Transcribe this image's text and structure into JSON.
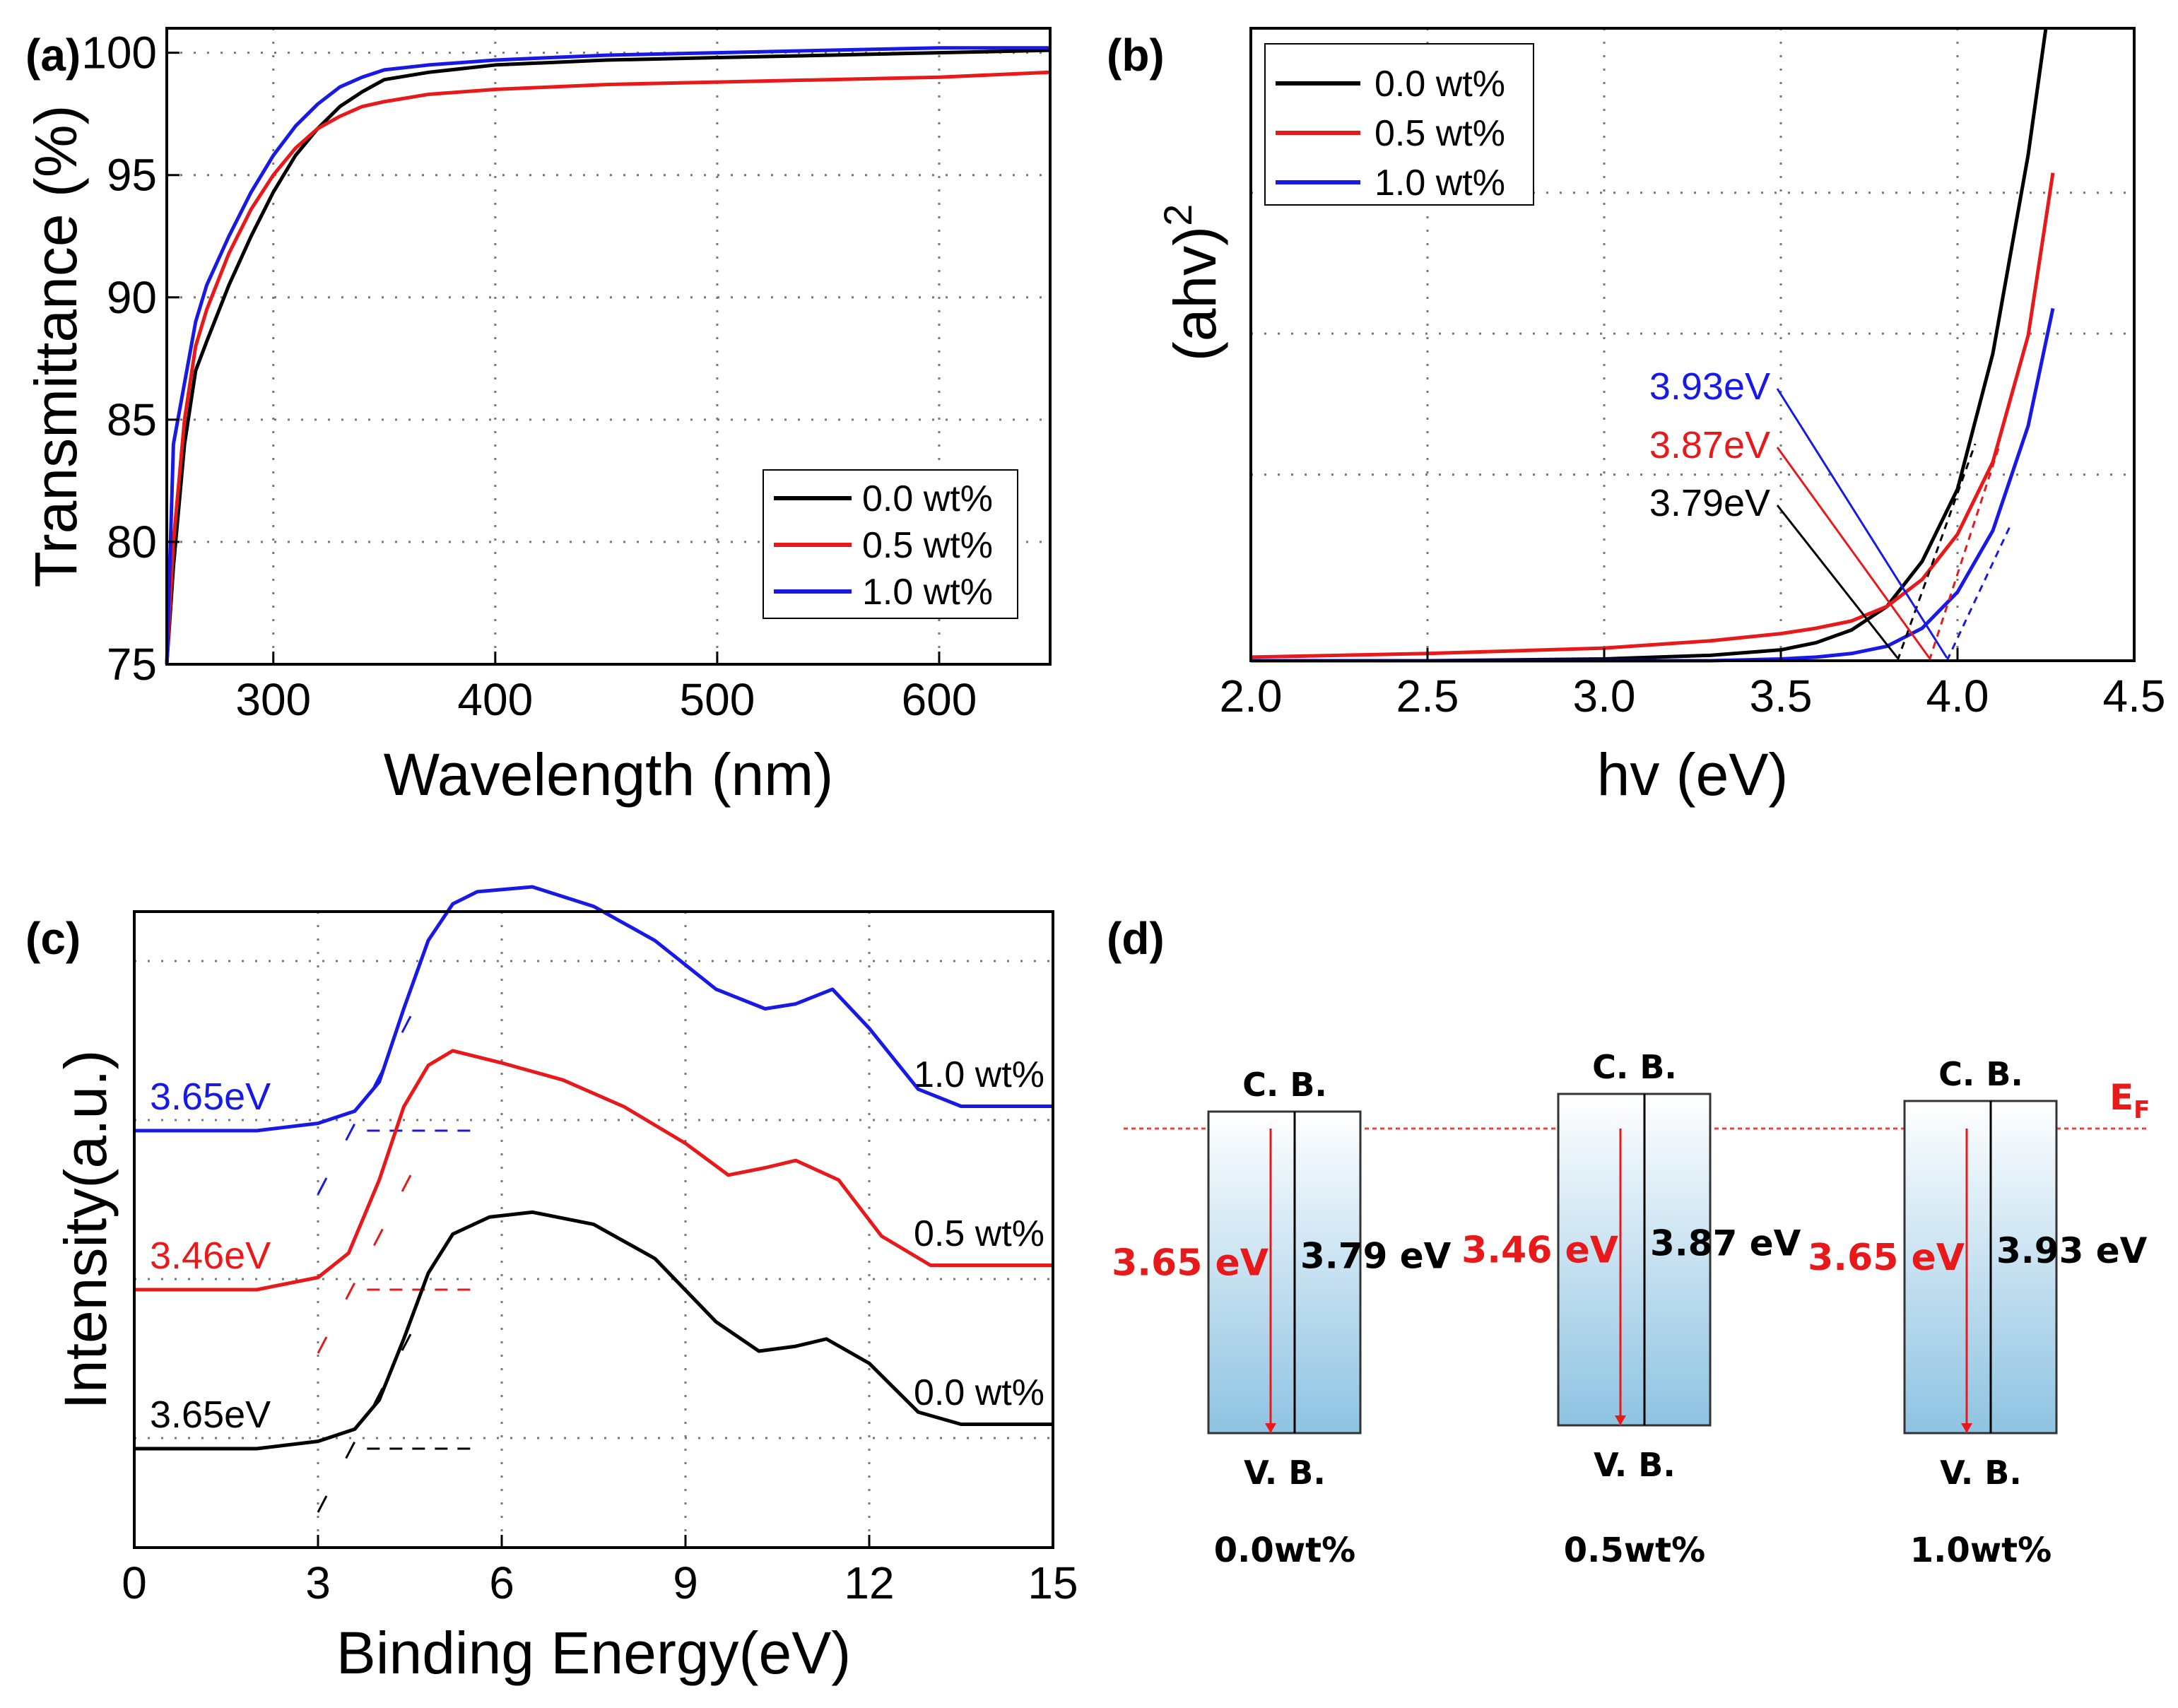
{
  "chart_data": [
    {
      "panel": "(a)",
      "type": "line",
      "xlabel": "Wavelength (nm)",
      "ylabel": "Transmittance (%)",
      "xlim": [
        252,
        650
      ],
      "ylim": [
        75,
        101
      ],
      "xticks": [
        300,
        400,
        500,
        600
      ],
      "yticks": [
        75,
        80,
        85,
        90,
        95,
        100
      ],
      "grid": true,
      "legend": "bottom-right",
      "series": [
        {
          "name": "0.0 wt%",
          "color": "#000000",
          "x": [
            252,
            255,
            260,
            265,
            270,
            280,
            290,
            300,
            310,
            320,
            330,
            340,
            350,
            370,
            400,
            450,
            500,
            550,
            600,
            650
          ],
          "y": [
            75,
            79,
            84,
            87,
            88.2,
            90.5,
            92.5,
            94.3,
            95.8,
            96.9,
            97.8,
            98.4,
            98.9,
            99.2,
            99.5,
            99.7,
            99.8,
            99.9,
            100.0,
            100.1
          ]
        },
        {
          "name": "0.5 wt%",
          "color": "#e8191b",
          "x": [
            252,
            255,
            260,
            265,
            270,
            280,
            290,
            300,
            310,
            320,
            330,
            340,
            350,
            370,
            400,
            450,
            500,
            550,
            600,
            650
          ],
          "y": [
            75,
            80,
            85,
            88,
            89.5,
            91.8,
            93.6,
            95.0,
            96.1,
            96.9,
            97.4,
            97.8,
            98.0,
            98.3,
            98.5,
            98.7,
            98.8,
            98.9,
            99.0,
            99.2
          ]
        },
        {
          "name": "1.0 wt%",
          "color": "#1919e6",
          "x": [
            252,
            255,
            260,
            265,
            270,
            280,
            290,
            300,
            310,
            320,
            330,
            340,
            350,
            370,
            400,
            450,
            500,
            550,
            600,
            650
          ],
          "y": [
            75,
            84,
            86.5,
            89,
            90.5,
            92.5,
            94.3,
            95.8,
            97.0,
            97.9,
            98.6,
            99.0,
            99.3,
            99.5,
            99.7,
            99.9,
            100.0,
            100.1,
            100.2,
            100.2
          ]
        }
      ]
    },
    {
      "panel": "(b)",
      "type": "line",
      "xlabel": "hv (eV)",
      "ylabel": "(ahv)",
      "ylabel_sup": "2",
      "xlim": [
        2.0,
        4.5
      ],
      "ylim": [
        0,
        3.5
      ],
      "xticks": [
        "2.0",
        "2.5",
        "3.0",
        "3.5",
        "4.0",
        "4.5"
      ],
      "grid": true,
      "legend": "top-left",
      "series": [
        {
          "name": "0.0 wt%",
          "color": "#000000",
          "x": [
            2.0,
            2.5,
            3.0,
            3.3,
            3.5,
            3.6,
            3.7,
            3.8,
            3.9,
            4.0,
            4.1,
            4.2,
            4.25
          ],
          "y": [
            0.0,
            0.0,
            0.01,
            0.03,
            0.06,
            0.1,
            0.17,
            0.3,
            0.55,
            0.95,
            1.7,
            2.8,
            3.5
          ]
        },
        {
          "name": "0.5 wt%",
          "color": "#e8191b",
          "x": [
            2.0,
            2.5,
            3.0,
            3.3,
            3.5,
            3.6,
            3.7,
            3.8,
            3.9,
            4.0,
            4.1,
            4.2,
            4.27
          ],
          "y": [
            0.02,
            0.04,
            0.07,
            0.11,
            0.15,
            0.18,
            0.22,
            0.3,
            0.45,
            0.7,
            1.1,
            1.8,
            2.7
          ]
        },
        {
          "name": "1.0 wt%",
          "color": "#1919e6",
          "x": [
            2.0,
            2.5,
            3.0,
            3.3,
            3.5,
            3.6,
            3.7,
            3.8,
            3.9,
            4.0,
            4.1,
            4.2,
            4.27
          ],
          "y": [
            0.0,
            0.0,
            0.0,
            0.0,
            0.01,
            0.02,
            0.04,
            0.08,
            0.18,
            0.38,
            0.72,
            1.3,
            1.95
          ]
        }
      ],
      "tangents": [
        {
          "color": "#000000",
          "x": [
            3.83,
            4.05
          ],
          "y": [
            0.0,
            1.2
          ]
        },
        {
          "color": "#e8191b",
          "x": [
            3.92,
            4.12
          ],
          "y": [
            0.0,
            1.2
          ]
        },
        {
          "color": "#1919e6",
          "x": [
            3.97,
            4.15
          ],
          "y": [
            0.0,
            0.75
          ]
        }
      ],
      "annotations": [
        {
          "text": "3.93eV",
          "color": "#1919e6"
        },
        {
          "text": "3.87eV",
          "color": "#e8191b"
        },
        {
          "text": "3.79eV",
          "color": "#000000"
        }
      ]
    },
    {
      "panel": "(c)",
      "type": "line",
      "xlabel": "Binding Energy(eV)",
      "ylabel": "Intensity(a.u.)",
      "xlim": [
        0,
        15
      ],
      "xticks": [
        0,
        3,
        6,
        9,
        12,
        15
      ],
      "grid": true,
      "series": [
        {
          "name": "1.0 wt%",
          "edge": "3.65eV",
          "color": "#1919e6",
          "offset": 2.0,
          "x": [
            0,
            2,
            3,
            3.6,
            4.0,
            4.4,
            4.8,
            5.2,
            5.6,
            6.5,
            7.5,
            8.5,
            9.5,
            10.3,
            10.8,
            11.4,
            12.0,
            12.8,
            13.5,
            15
          ],
          "y": [
            0,
            0,
            0.03,
            0.08,
            0.2,
            0.5,
            0.78,
            0.93,
            0.98,
            1.0,
            0.92,
            0.78,
            0.58,
            0.5,
            0.52,
            0.58,
            0.42,
            0.17,
            0.1,
            0.1
          ]
        },
        {
          "name": "0.5 wt%",
          "edge": "3.46eV",
          "color": "#e8191b",
          "offset": 1.0,
          "x": [
            0,
            2,
            3,
            3.5,
            4.0,
            4.4,
            4.8,
            5.2,
            6.0,
            7.0,
            8.0,
            9.0,
            9.7,
            10.3,
            10.8,
            11.5,
            12.2,
            13.0,
            15
          ],
          "y": [
            0,
            0,
            0.05,
            0.15,
            0.45,
            0.75,
            0.92,
            0.98,
            0.93,
            0.86,
            0.75,
            0.6,
            0.47,
            0.5,
            0.53,
            0.45,
            0.22,
            0.1,
            0.1
          ]
        },
        {
          "name": "0.0 wt%",
          "edge": "3.65eV",
          "color": "#000000",
          "offset": 0.0,
          "x": [
            0,
            2,
            3,
            3.6,
            4.0,
            4.4,
            4.8,
            5.2,
            5.8,
            6.5,
            7.5,
            8.5,
            9.5,
            10.2,
            10.8,
            11.3,
            12.0,
            12.8,
            13.5,
            15
          ],
          "y": [
            0,
            0,
            0.03,
            0.08,
            0.2,
            0.45,
            0.72,
            0.88,
            0.95,
            0.97,
            0.92,
            0.78,
            0.52,
            0.4,
            0.42,
            0.45,
            0.35,
            0.15,
            0.1,
            0.1
          ]
        }
      ]
    },
    {
      "panel": "(d)",
      "type": "diagram",
      "fermi_label": "E",
      "fermi_sub": "F",
      "columns": [
        {
          "cb": "C. B.",
          "vb": "V. B.",
          "red": "3.65 eV",
          "black": "3.79 eV",
          "sample": "0.0wt%"
        },
        {
          "cb": "C. B.",
          "vb": "V. B.",
          "red": "3.46 eV",
          "black": "3.87 eV",
          "sample": "0.5wt%"
        },
        {
          "cb": "C. B.",
          "vb": "V. B.",
          "red": "3.65 eV",
          "black": "3.93 eV",
          "sample": "1.0wt%"
        }
      ]
    }
  ],
  "panels": {
    "a": "(a)",
    "b": "(b)",
    "c": "(c)",
    "d": "(d)"
  }
}
